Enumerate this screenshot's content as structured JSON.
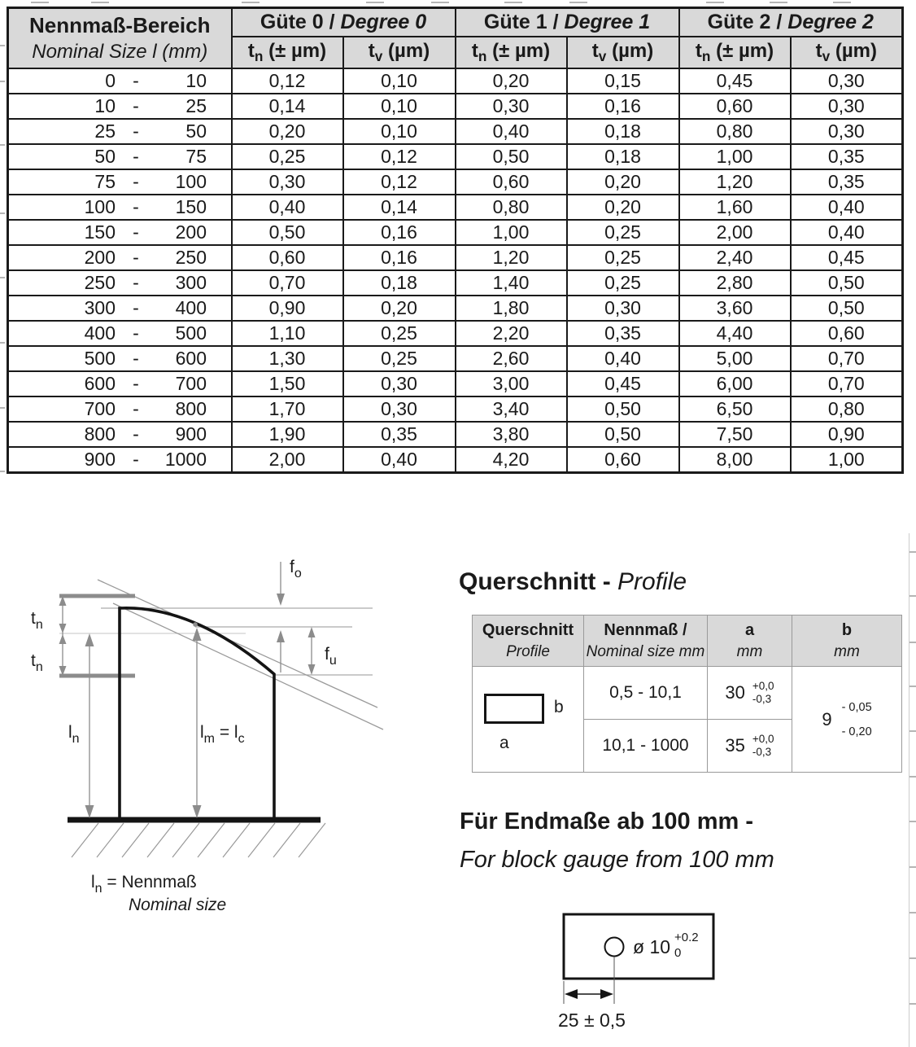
{
  "main_table": {
    "nominal_header": {
      "line1": "Nennmaß-Bereich",
      "line2": "Nominal Size l (mm)"
    },
    "groups": [
      {
        "de": "Güte 0 / ",
        "en": "Degree 0"
      },
      {
        "de": "Güte 1 / ",
        "en": "Degree 1"
      },
      {
        "de": "Güte 2 / ",
        "en": "Degree 2"
      }
    ],
    "sub": {
      "t": "t",
      "n": "n",
      "v": "v",
      "tn_unit": " (± µm)",
      "tv_unit": " (µm)"
    },
    "rows": [
      {
        "from": "0",
        "dash": "-",
        "to": "10",
        "values": [
          "0,12",
          "0,10",
          "0,20",
          "0,15",
          "0,45",
          "0,30"
        ]
      },
      {
        "from": "10",
        "dash": "-",
        "to": "25",
        "values": [
          "0,14",
          "0,10",
          "0,30",
          "0,16",
          "0,60",
          "0,30"
        ]
      },
      {
        "from": "25",
        "dash": "-",
        "to": "50",
        "values": [
          "0,20",
          "0,10",
          "0,40",
          "0,18",
          "0,80",
          "0,30"
        ]
      },
      {
        "from": "50",
        "dash": "-",
        "to": "75",
        "values": [
          "0,25",
          "0,12",
          "0,50",
          "0,18",
          "1,00",
          "0,35"
        ]
      },
      {
        "from": "75",
        "dash": "-",
        "to": "100",
        "values": [
          "0,30",
          "0,12",
          "0,60",
          "0,20",
          "1,20",
          "0,35"
        ]
      },
      {
        "from": "100",
        "dash": "-",
        "to": "150",
        "values": [
          "0,40",
          "0,14",
          "0,80",
          "0,20",
          "1,60",
          "0,40"
        ]
      },
      {
        "from": "150",
        "dash": "-",
        "to": "200",
        "values": [
          "0,50",
          "0,16",
          "1,00",
          "0,25",
          "2,00",
          "0,40"
        ]
      },
      {
        "from": "200",
        "dash": "-",
        "to": "250",
        "values": [
          "0,60",
          "0,16",
          "1,20",
          "0,25",
          "2,40",
          "0,45"
        ]
      },
      {
        "from": "250",
        "dash": "-",
        "to": "300",
        "values": [
          "0,70",
          "0,18",
          "1,40",
          "0,25",
          "2,80",
          "0,50"
        ]
      },
      {
        "from": "300",
        "dash": "-",
        "to": "400",
        "values": [
          "0,90",
          "0,20",
          "1,80",
          "0,30",
          "3,60",
          "0,50"
        ]
      },
      {
        "from": "400",
        "dash": "-",
        "to": "500",
        "values": [
          "1,10",
          "0,25",
          "2,20",
          "0,35",
          "4,40",
          "0,60"
        ]
      },
      {
        "from": "500",
        "dash": "-",
        "to": "600",
        "values": [
          "1,30",
          "0,25",
          "2,60",
          "0,40",
          "5,00",
          "0,70"
        ]
      },
      {
        "from": "600",
        "dash": "-",
        "to": "700",
        "values": [
          "1,50",
          "0,30",
          "3,00",
          "0,45",
          "6,00",
          "0,70"
        ]
      },
      {
        "from": "700",
        "dash": "-",
        "to": "800",
        "values": [
          "1,70",
          "0,30",
          "3,40",
          "0,50",
          "6,50",
          "0,80"
        ]
      },
      {
        "from": "800",
        "dash": "-",
        "to": "900",
        "values": [
          "1,90",
          "0,35",
          "3,80",
          "0,50",
          "7,50",
          "0,90"
        ]
      },
      {
        "from": "900",
        "dash": "-",
        "to": "1000",
        "values": [
          "2,00",
          "0,40",
          "4,20",
          "0,60",
          "8,00",
          "1,00"
        ]
      }
    ]
  },
  "diagram": {
    "fo": {
      "base": "f",
      "sub": "o"
    },
    "fu": {
      "base": "f",
      "sub": "u"
    },
    "tn1": {
      "base": "t",
      "sub": "n"
    },
    "tn2": {
      "base": "t",
      "sub": "n"
    },
    "ln": {
      "base": "l",
      "sub": "n"
    },
    "lm": {
      "base1": "l",
      "sub1": "m",
      "mid": " = l",
      "sub2": "c"
    },
    "caption": {
      "base": "l",
      "sub": "n",
      "rest": " = Nennmaß",
      "en": "Nominal size"
    }
  },
  "profile": {
    "heading_de": "Querschnitt - ",
    "heading_en": "Profile",
    "table": {
      "headers": [
        {
          "de": "Querschnitt",
          "en": "Profile"
        },
        {
          "de": "Nennmaß /",
          "en": "Nominal size mm"
        },
        {
          "de": "a",
          "en": "mm"
        },
        {
          "de": "b",
          "en": "mm"
        }
      ],
      "shape": {
        "a": "a",
        "b": "b"
      },
      "rows": [
        {
          "size": "0,5 - 10,1",
          "a": "30",
          "a_up": "+0,0",
          "a_dn": "-0,3"
        },
        {
          "size": "10,1 - 1000",
          "a": "35",
          "a_up": "+0,0",
          "a_dn": "-0,3"
        }
      ],
      "b": {
        "value": "9",
        "up": "- 0,05",
        "dn": "- 0,20"
      }
    }
  },
  "endmasse": {
    "heading_de": "Für Endmaße ab 100 mm -",
    "heading_en": "For block gauge from 100 mm",
    "hole": {
      "label": "ø 10",
      "sub": "0",
      "sup": "+0.2"
    },
    "dim": "25 ± 0,5"
  }
}
